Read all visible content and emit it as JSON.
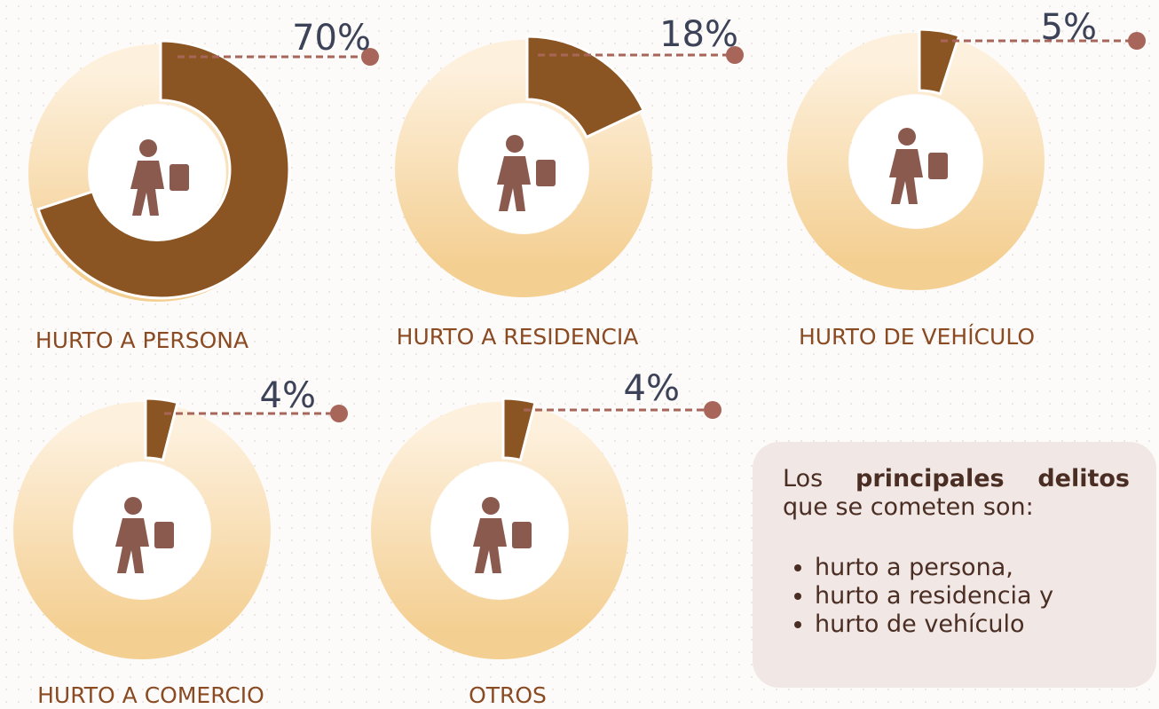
{
  "chart_data": [
    {
      "type": "donut",
      "title": "HURTO A PERSONA",
      "values": [
        70
      ],
      "value_labels": [
        "70%"
      ],
      "color": "#8b5523"
    },
    {
      "type": "donut",
      "title": "HURTO A RESIDENCIA",
      "values": [
        18
      ],
      "value_labels": [
        "18%"
      ],
      "color": "#8b5523"
    },
    {
      "type": "donut",
      "title": "HURTO DE VEHÍCULO",
      "values": [
        5
      ],
      "value_labels": [
        "5%"
      ],
      "color": "#8b5523"
    },
    {
      "type": "donut",
      "title": "HURTO A COMERCIO",
      "values": [
        4
      ],
      "value_labels": [
        "4%"
      ],
      "color": "#8b5523"
    },
    {
      "type": "donut",
      "title": "OTROS",
      "values": [
        4
      ],
      "value_labels": [
        "4%"
      ],
      "color": "#8b5523"
    }
  ],
  "note": {
    "intro_start": "Los",
    "intro_bold": "principales delitos",
    "intro_end": "que se cometen son:",
    "items": [
      "hurto a persona,",
      "hurto a residencia y",
      "hurto de vehículo"
    ]
  }
}
